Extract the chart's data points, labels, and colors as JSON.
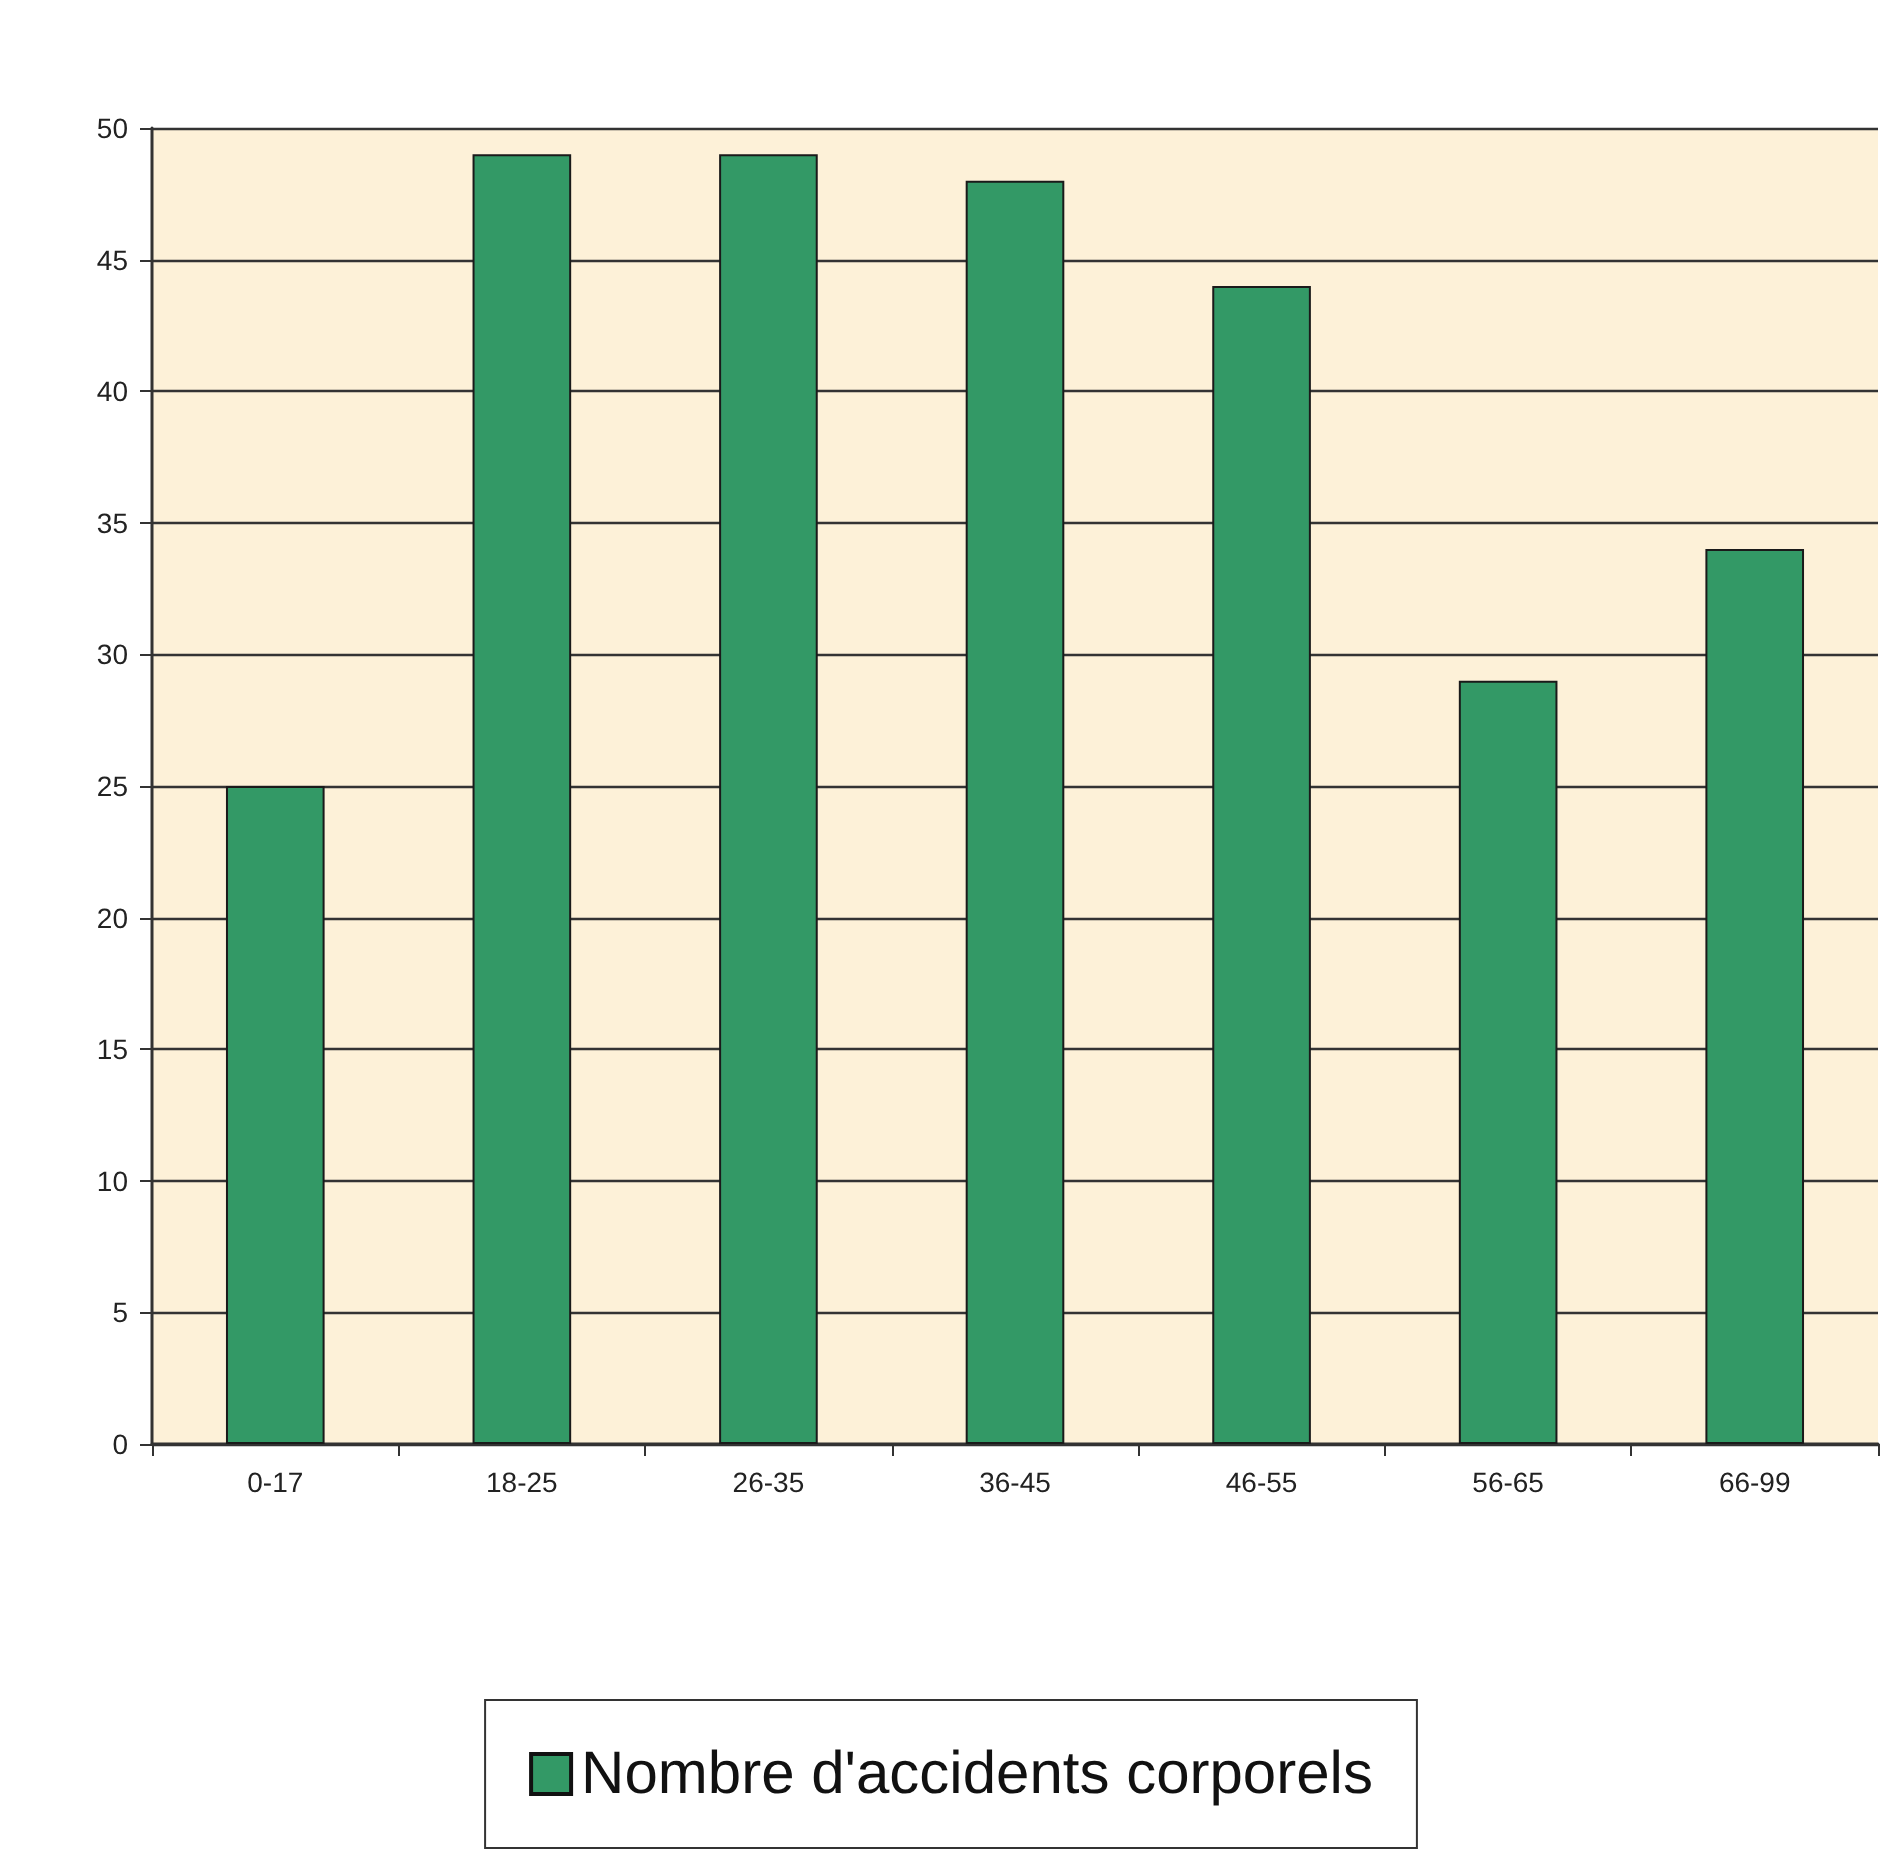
{
  "chart_data": {
    "type": "bar",
    "categories": [
      "0-17",
      "18-25",
      "26-35",
      "36-45",
      "46-55",
      "56-65",
      "66-99"
    ],
    "series": [
      {
        "name": "Nombre d'accidents corporels",
        "color": "#339966",
        "values": [
          25,
          49,
          49,
          48,
          44,
          29,
          34
        ]
      }
    ],
    "ylim": [
      0,
      50
    ],
    "yticks": [
      0,
      5,
      10,
      15,
      20,
      25,
      30,
      35,
      40,
      45,
      50
    ],
    "grid": "y",
    "legend": "bottom"
  }
}
